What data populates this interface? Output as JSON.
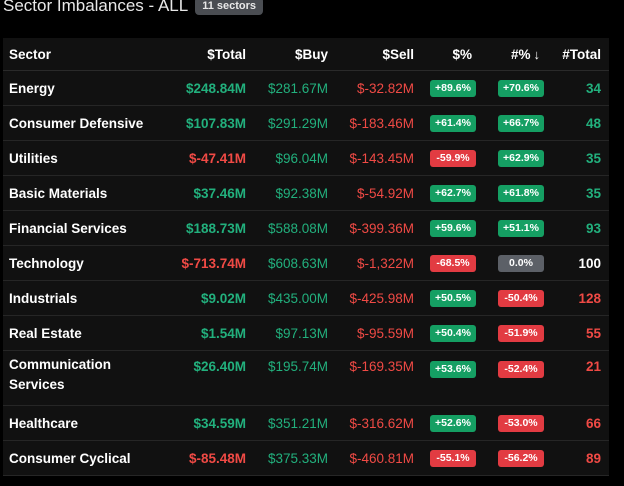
{
  "header": {
    "title": "Sector Imbalances - ALL",
    "badge": "11 sectors"
  },
  "table": {
    "columns": {
      "sector": "Sector",
      "total": "$Total",
      "buy": "$Buy",
      "sell": "$Sell",
      "pct": "$%",
      "count_pct": "#%",
      "count_total": "#Total"
    },
    "sort_indicator": "↓",
    "rows": [
      {
        "sector": "Energy",
        "total": "$248.84M",
        "total_sign": "pos",
        "buy": "$281.67M",
        "sell": "$-32.82M",
        "pct": "+89.6%",
        "pct_sign": "pos",
        "count_pct": "+70.6%",
        "count_pct_sign": "pos",
        "count_total": "34",
        "count_sign": "pos"
      },
      {
        "sector": "Consumer Defensive",
        "total": "$107.83M",
        "total_sign": "pos",
        "buy": "$291.29M",
        "sell": "$-183.46M",
        "pct": "+61.4%",
        "pct_sign": "pos",
        "count_pct": "+66.7%",
        "count_pct_sign": "pos",
        "count_total": "48",
        "count_sign": "pos"
      },
      {
        "sector": "Utilities",
        "total": "$-47.41M",
        "total_sign": "neg",
        "buy": "$96.04M",
        "sell": "$-143.45M",
        "pct": "-59.9%",
        "pct_sign": "neg",
        "count_pct": "+62.9%",
        "count_pct_sign": "pos",
        "count_total": "35",
        "count_sign": "pos"
      },
      {
        "sector": "Basic Materials",
        "total": "$37.46M",
        "total_sign": "pos",
        "buy": "$92.38M",
        "sell": "$-54.92M",
        "pct": "+62.7%",
        "pct_sign": "pos",
        "count_pct": "+61.8%",
        "count_pct_sign": "pos",
        "count_total": "35",
        "count_sign": "pos"
      },
      {
        "sector": "Financial Services",
        "total": "$188.73M",
        "total_sign": "pos",
        "buy": "$588.08M",
        "sell": "$-399.36M",
        "pct": "+59.6%",
        "pct_sign": "pos",
        "count_pct": "+51.1%",
        "count_pct_sign": "pos",
        "count_total": "93",
        "count_sign": "pos"
      },
      {
        "sector": "Technology",
        "total": "$-713.74M",
        "total_sign": "neg",
        "buy": "$608.63M",
        "sell": "$-1,322M",
        "pct": "-68.5%",
        "pct_sign": "neg",
        "count_pct": "0.0%",
        "count_pct_sign": "neu",
        "count_total": "100",
        "count_sign": "neu"
      },
      {
        "sector": "Industrials",
        "total": "$9.02M",
        "total_sign": "pos",
        "buy": "$435.00M",
        "sell": "$-425.98M",
        "pct": "+50.5%",
        "pct_sign": "pos",
        "count_pct": "-50.4%",
        "count_pct_sign": "neg",
        "count_total": "128",
        "count_sign": "neg"
      },
      {
        "sector": "Real Estate",
        "total": "$1.54M",
        "total_sign": "pos",
        "buy": "$97.13M",
        "sell": "$-95.59M",
        "pct": "+50.4%",
        "pct_sign": "pos",
        "count_pct": "-51.9%",
        "count_pct_sign": "neg",
        "count_total": "55",
        "count_sign": "neg"
      },
      {
        "sector": "Communication Services",
        "total": "$26.40M",
        "total_sign": "pos",
        "buy": "$195.74M",
        "sell": "$-169.35M",
        "pct": "+53.6%",
        "pct_sign": "pos",
        "count_pct": "-52.4%",
        "count_pct_sign": "neg",
        "count_total": "21",
        "count_sign": "neg"
      },
      {
        "sector": "Healthcare",
        "total": "$34.59M",
        "total_sign": "pos",
        "buy": "$351.21M",
        "sell": "$-316.62M",
        "pct": "+52.6%",
        "pct_sign": "pos",
        "count_pct": "-53.0%",
        "count_pct_sign": "neg",
        "count_total": "66",
        "count_sign": "neg"
      },
      {
        "sector": "Consumer Cyclical",
        "total": "$-85.48M",
        "total_sign": "neg",
        "buy": "$375.33M",
        "sell": "$-460.81M",
        "pct": "-55.1%",
        "pct_sign": "neg",
        "count_pct": "-56.2%",
        "count_pct_sign": "neg",
        "count_total": "89",
        "count_sign": "neg"
      }
    ]
  },
  "colors": {
    "positive": "#22b07d",
    "negative": "#f04a45",
    "neutral_pill": "#5c6067",
    "background": "#000000",
    "table_background": "#111111"
  }
}
